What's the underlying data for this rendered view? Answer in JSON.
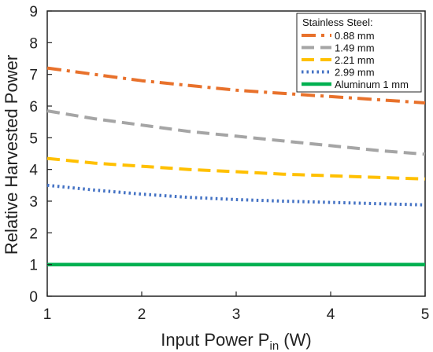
{
  "chart_data": {
    "type": "line",
    "title": "",
    "xlabel": "Input Power P",
    "xlabel_subscript": "in",
    "xlabel_suffix": " (W)",
    "ylabel": "Relative Harvested Power",
    "xlim": [
      1,
      5
    ],
    "ylim": [
      0,
      9
    ],
    "xticks": [
      "1",
      "2",
      "3",
      "4",
      "5"
    ],
    "yticks": [
      "0",
      "1",
      "2",
      "3",
      "4",
      "5",
      "6",
      "7",
      "8",
      "9"
    ],
    "grid": false,
    "legend": {
      "placement": "top-right",
      "title": "Stainless Steel:"
    },
    "x": [
      1,
      1.5,
      2,
      2.5,
      3,
      3.5,
      4,
      4.5,
      5
    ],
    "series": [
      {
        "name": "0.88 mm",
        "color": "#E8712B",
        "dash": "dashdot",
        "values": [
          7.2,
          7.0,
          6.8,
          6.65,
          6.5,
          6.4,
          6.3,
          6.2,
          6.1
        ]
      },
      {
        "name": "1.49 mm",
        "color": "#A5A5A5",
        "dash": "dash",
        "values": [
          5.85,
          5.6,
          5.4,
          5.2,
          5.05,
          4.9,
          4.75,
          4.6,
          4.48
        ]
      },
      {
        "name": "2.21 mm",
        "color": "#FFC000",
        "dash": "dash",
        "values": [
          4.35,
          4.2,
          4.1,
          4.0,
          3.93,
          3.85,
          3.8,
          3.75,
          3.7
        ]
      },
      {
        "name": "2.99 mm",
        "color": "#4472C4",
        "dash": "dot",
        "values": [
          3.5,
          3.35,
          3.22,
          3.12,
          3.05,
          3.0,
          2.96,
          2.92,
          2.88
        ]
      },
      {
        "name": "Aluminum 1 mm",
        "color": "#00B050",
        "dash": "solid",
        "values": [
          1,
          1,
          1,
          1,
          1,
          1,
          1,
          1,
          1
        ]
      }
    ]
  }
}
